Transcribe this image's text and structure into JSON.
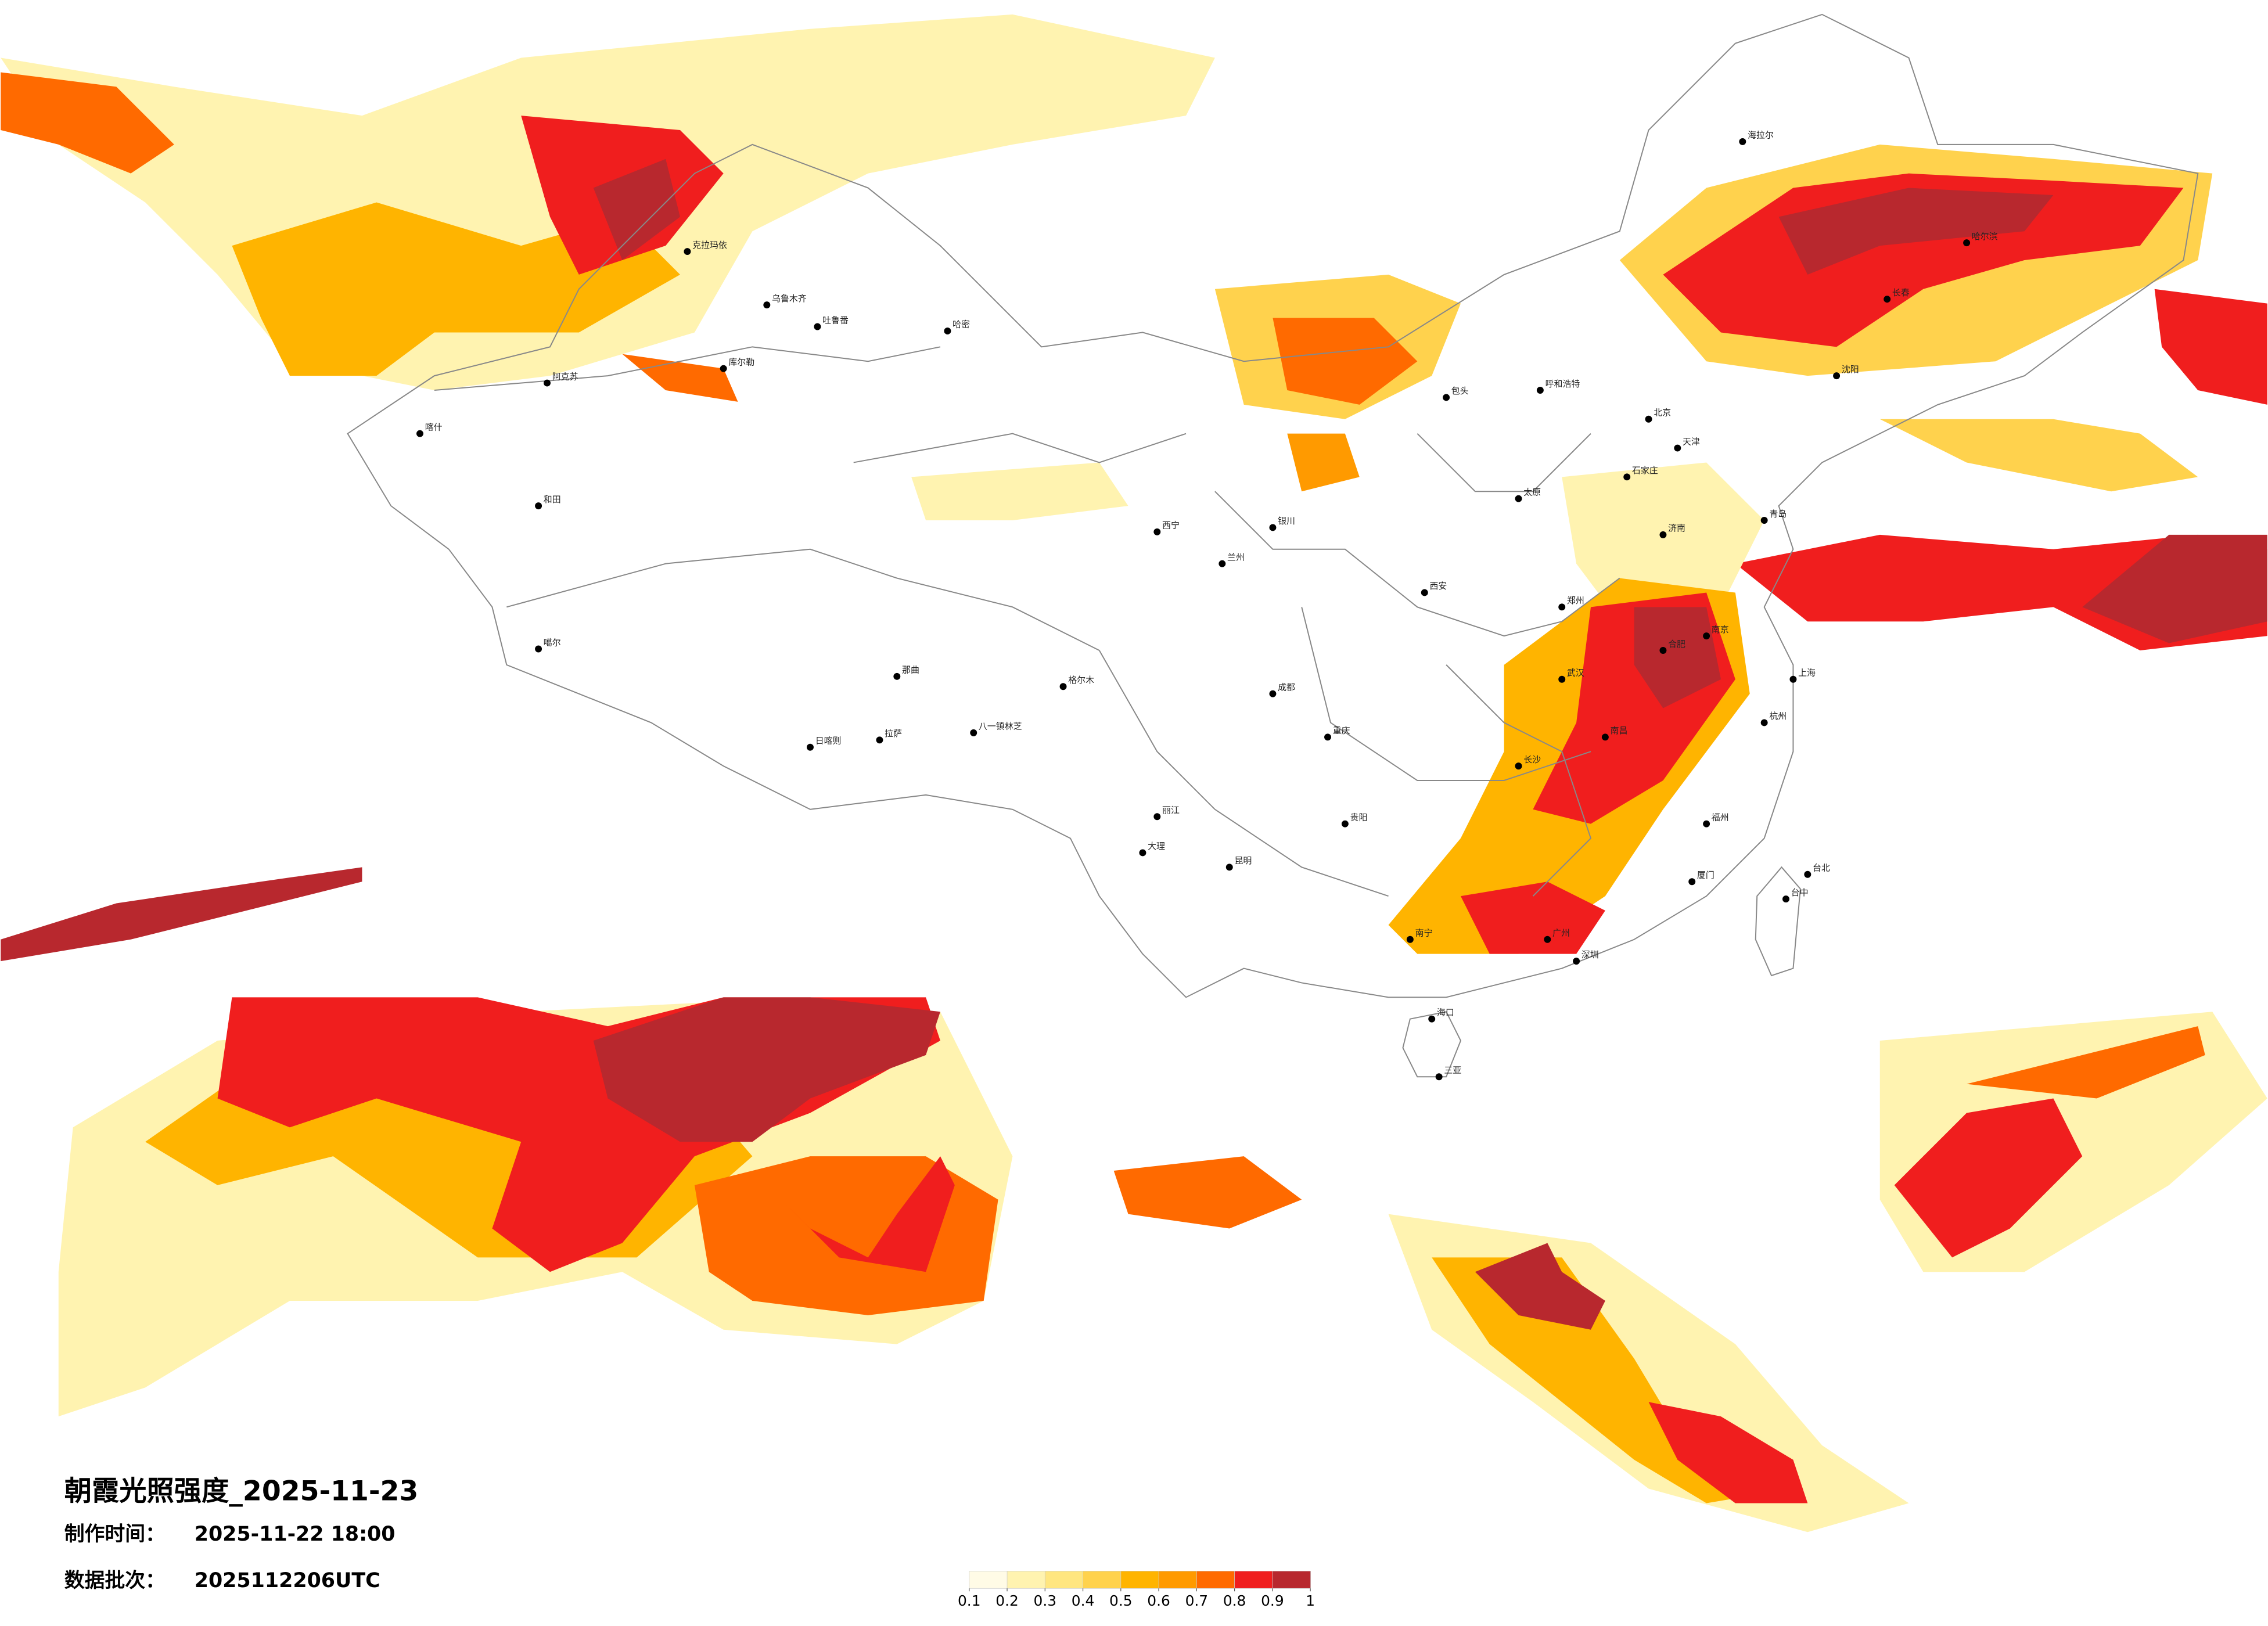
{
  "header": {
    "title": "朝霞光照强度_2025-11-23",
    "made_label": "制作时间：",
    "made_value": "2025-11-22 18:00",
    "batch_label": "数据批次：",
    "batch_value": "2025112206UTC"
  },
  "legend": {
    "colors": [
      "#fffbe6",
      "#fff3b0",
      "#ffe680",
      "#ffd24d",
      "#ffb400",
      "#ff9a00",
      "#ff6a00",
      "#f01e1e",
      "#b8282e"
    ],
    "ticks": [
      0.1,
      0.2,
      0.3,
      0.4,
      0.5,
      0.6,
      0.7,
      0.8,
      0.9,
      1
    ]
  },
  "cities": [
    "克拉玛依",
    "乌鲁木齐",
    "吐鲁番",
    "哈密",
    "阿克苏",
    "喀什",
    "和田",
    "库尔勒",
    "噶尔",
    "那曲",
    "拉萨",
    "日喀则",
    "八一镇林芝",
    "格尔木",
    "西宁",
    "兰州",
    "银川",
    "呼和浩特",
    "包头",
    "北京",
    "天津",
    "石家庄",
    "太原",
    "西安",
    "郑州",
    "济南",
    "青岛",
    "南京",
    "上海",
    "杭州",
    "合肥",
    "武汉",
    "长沙",
    "南昌",
    "福州",
    "厦门",
    "广州",
    "深圳",
    "南宁",
    "海口",
    "三亚",
    "贵阳",
    "昆明",
    "成都",
    "重庆",
    "沈阳",
    "长春",
    "哈尔滨",
    "海拉尔",
    "台北",
    "台中",
    "大理",
    "丽江"
  ]
}
